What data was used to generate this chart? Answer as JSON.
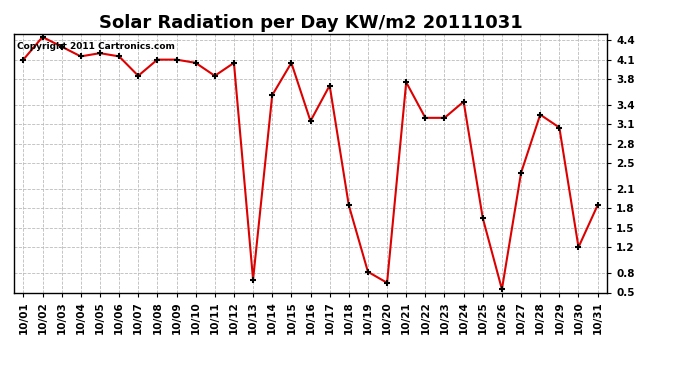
{
  "title": "Solar Radiation per Day KW/m2 20111031",
  "copyright": "Copyright 2011 Cartronics.com",
  "dates": [
    "10/01",
    "10/02",
    "10/03",
    "10/04",
    "10/05",
    "10/06",
    "10/07",
    "10/08",
    "10/09",
    "10/10",
    "10/11",
    "10/12",
    "10/13",
    "10/14",
    "10/15",
    "10/16",
    "10/17",
    "10/18",
    "10/19",
    "10/20",
    "10/21",
    "10/22",
    "10/23",
    "10/24",
    "10/25",
    "10/26",
    "10/27",
    "10/28",
    "10/29",
    "10/30",
    "10/31"
  ],
  "values": [
    4.1,
    4.45,
    4.3,
    4.15,
    4.2,
    4.15,
    3.85,
    4.1,
    4.1,
    4.05,
    3.85,
    4.05,
    0.7,
    3.55,
    4.05,
    3.15,
    3.7,
    1.85,
    0.82,
    0.65,
    3.75,
    3.2,
    3.2,
    3.45,
    1.65,
    0.55,
    2.35,
    3.25,
    3.05,
    1.2,
    1.85
  ],
  "line_color": "#dd0000",
  "marker": "+",
  "marker_color": "#000000",
  "bg_color": "#ffffff",
  "grid_color": "#bbbbbb",
  "ylim": [
    0.5,
    4.5
  ],
  "yticks": [
    0.5,
    0.8,
    1.2,
    1.5,
    1.8,
    2.1,
    2.5,
    2.8,
    3.1,
    3.4,
    3.8,
    4.1,
    4.4
  ],
  "title_fontsize": 13,
  "tick_fontsize": 7.5,
  "copyright_fontsize": 6.5
}
